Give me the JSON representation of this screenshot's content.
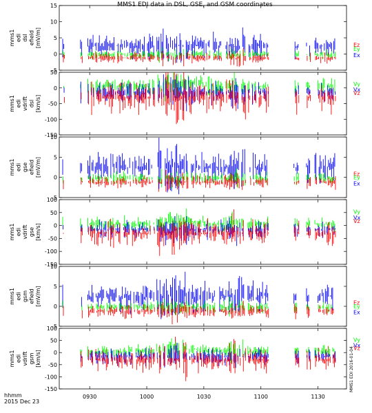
{
  "title": "MMS1 EDI data in DSL, GSE, and GSM coordinates",
  "footer": {
    "line1": "hhmm",
    "line2": "2015 Dec 23"
  },
  "timestamp_vertical": "MMS1 EDI 2016-01-04",
  "colors": {
    "x": "#0000ff",
    "y": "#00ff00",
    "z": "#ff0000"
  },
  "chart_data": {
    "type": "line",
    "x_ticks": [
      "0930",
      "1000",
      "1030",
      "1100",
      "1130"
    ],
    "x_tick_minutes": [
      570,
      600,
      630,
      660,
      690
    ],
    "x_range_minutes": [
      554,
      705
    ],
    "panels": [
      {
        "ylabel": [
          "mms1",
          "edi",
          "dsl",
          "efield",
          "[mV/m]"
        ],
        "ylim": [
          -5,
          15
        ],
        "ticks": [
          -5,
          0,
          5,
          10,
          15
        ],
        "legend": [
          {
            "name": "Ez",
            "color": "#ff0000"
          },
          {
            "name": "Ey",
            "color": "#00ff00"
          },
          {
            "name": "Ex",
            "color": "#0000ff"
          }
        ],
        "kind": "E"
      },
      {
        "ylabel": [
          "mms1",
          "edi",
          "vdrift",
          "dsl",
          "[km/s]"
        ],
        "ylim": [
          -150,
          50
        ],
        "ticks": [
          -150,
          -100,
          -50,
          0,
          50
        ],
        "legend": [
          {
            "name": "Vy",
            "color": "#00ff00"
          },
          {
            "name": "Vx",
            "color": "#0000ff"
          },
          {
            "name": "Vz",
            "color": "#ff0000"
          }
        ],
        "kind": "V"
      },
      {
        "ylabel": [
          "mms1",
          "edi",
          "gse",
          "efield",
          "[mV/m]"
        ],
        "ylim": [
          -5,
          10
        ],
        "ticks": [
          -5,
          0,
          5,
          10
        ],
        "legend": [
          {
            "name": "Ez",
            "color": "#ff0000"
          },
          {
            "name": "Ey",
            "color": "#00ff00"
          },
          {
            "name": "Ex",
            "color": "#0000ff"
          }
        ],
        "kind": "E"
      },
      {
        "ylabel": [
          "mms1",
          "edi",
          "vdrift",
          "gse",
          "[km/s]"
        ],
        "ylim": [
          -150,
          100
        ],
        "ticks": [
          -150,
          -100,
          -50,
          0,
          50,
          100
        ],
        "legend": [
          {
            "name": "Vy",
            "color": "#00ff00"
          },
          {
            "name": "Vx",
            "color": "#0000ff"
          },
          {
            "name": "Vz",
            "color": "#ff0000"
          }
        ],
        "kind": "V"
      },
      {
        "ylabel": [
          "mms1",
          "edi",
          "gsm",
          "efield",
          "[mV/m]"
        ],
        "ylim": [
          -5,
          10
        ],
        "ticks": [
          -5,
          0,
          5,
          10
        ],
        "legend": [
          {
            "name": "Ez",
            "color": "#ff0000"
          },
          {
            "name": "Ey",
            "color": "#00ff00"
          },
          {
            "name": "Ex",
            "color": "#0000ff"
          }
        ],
        "kind": "E"
      },
      {
        "ylabel": [
          "mms1",
          "edi",
          "vdrift",
          "gsm",
          "[km/s]"
        ],
        "ylim": [
          -150,
          100
        ],
        "ticks": [
          -150,
          -100,
          -50,
          0,
          50,
          100
        ],
        "legend": [
          {
            "name": "Vy",
            "color": "#00ff00"
          },
          {
            "name": "Vx",
            "color": "#0000ff"
          },
          {
            "name": "Vz",
            "color": "#ff0000"
          }
        ],
        "kind": "V"
      }
    ]
  }
}
